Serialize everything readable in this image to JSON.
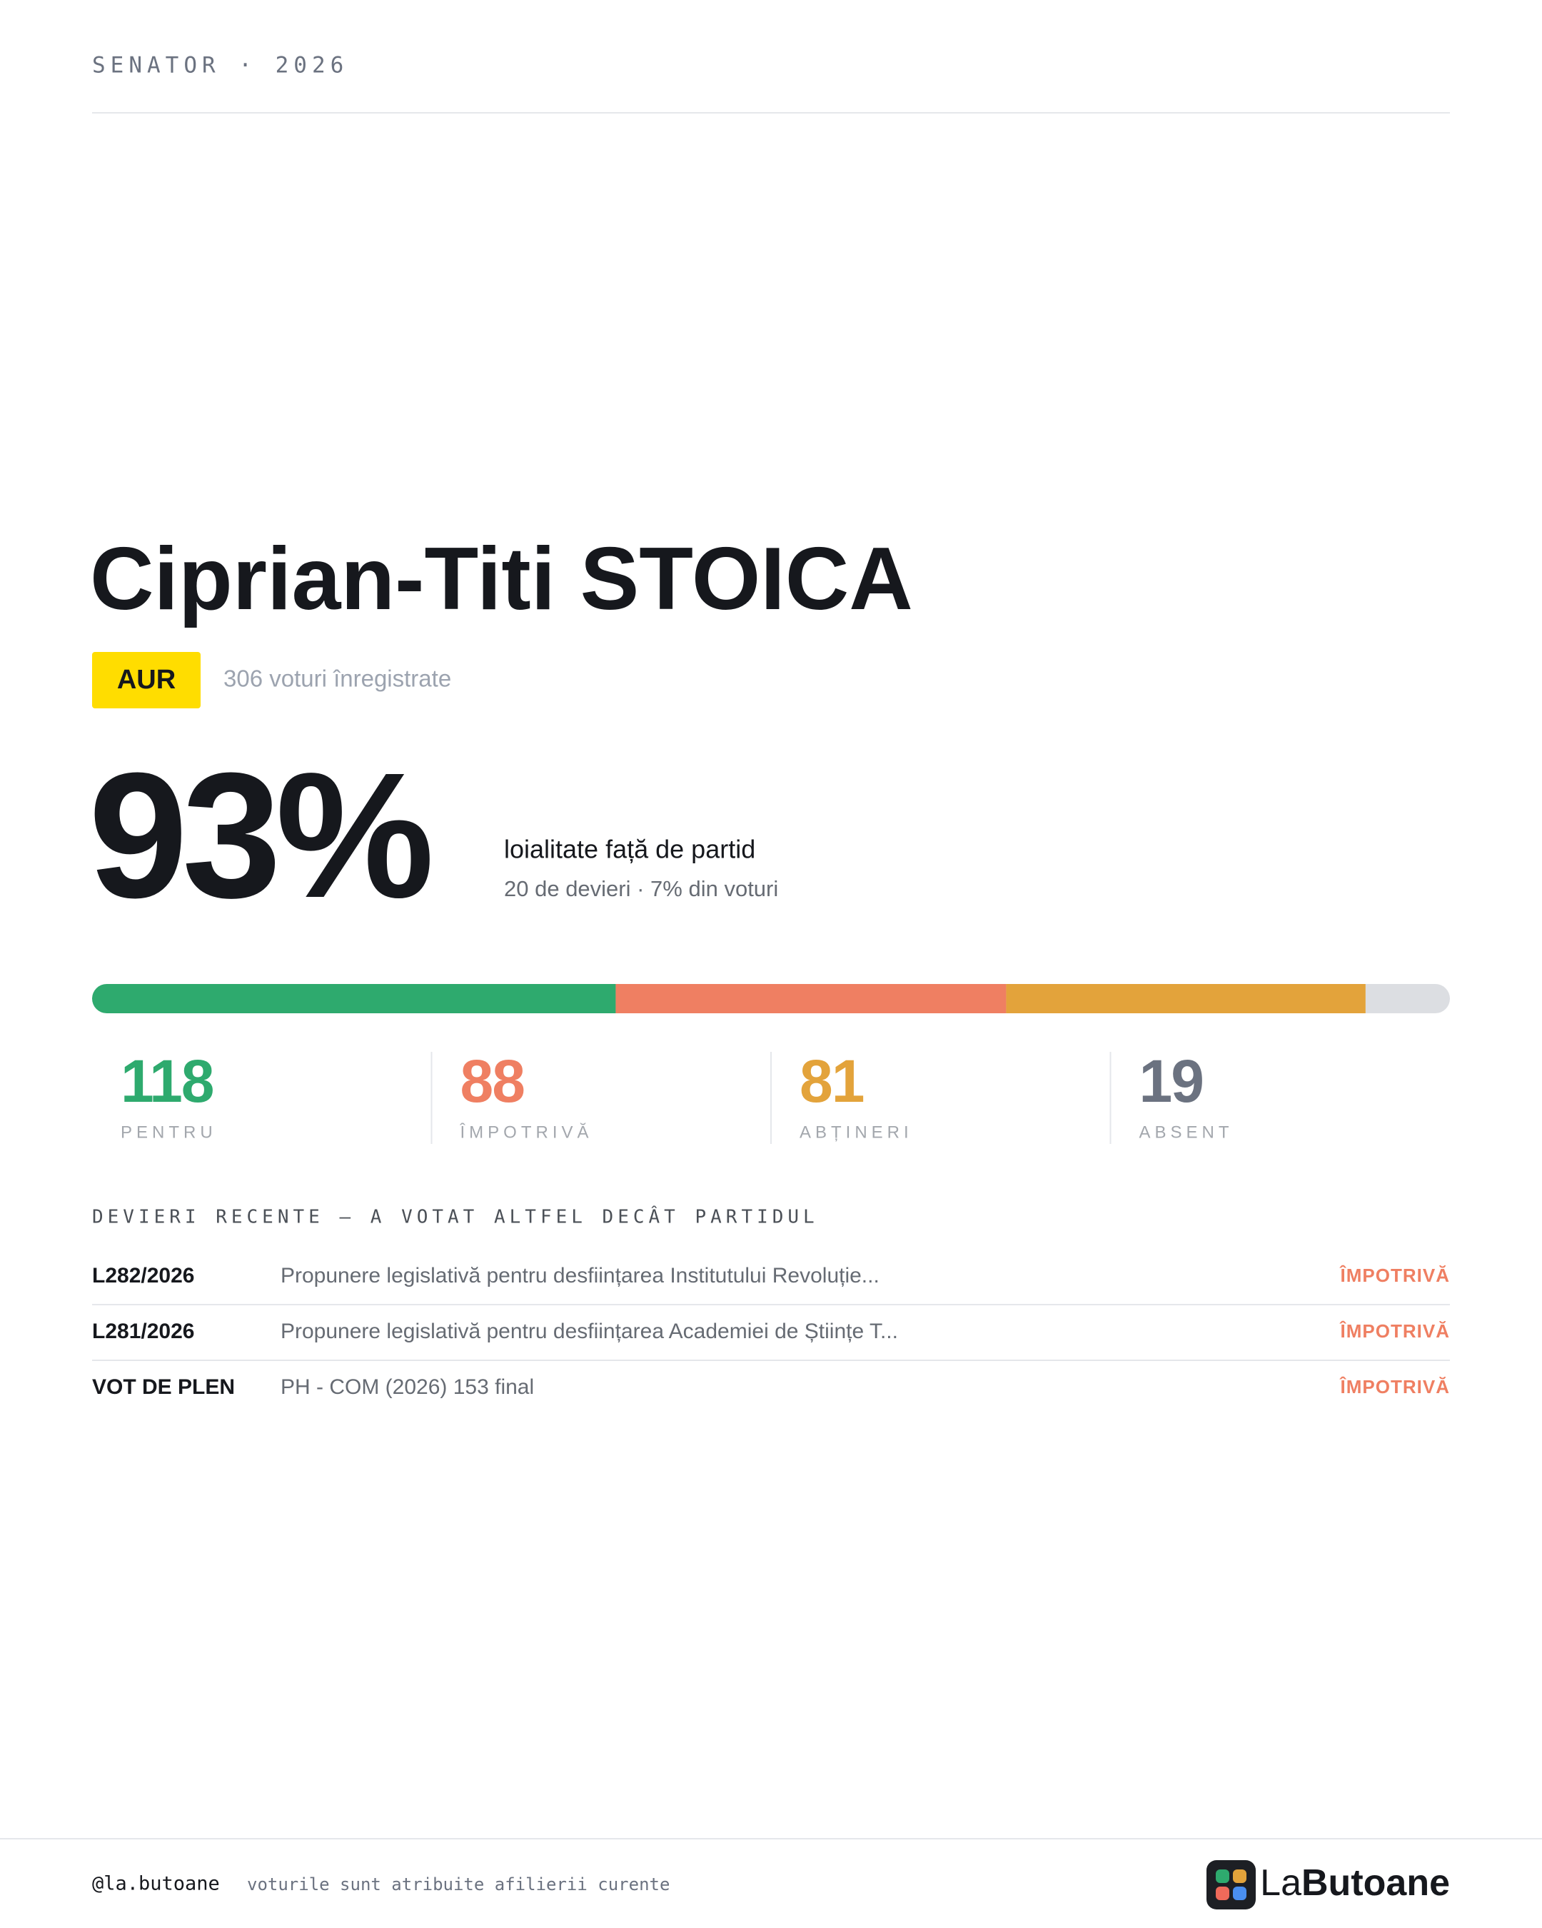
{
  "header": {
    "kicker": "SENATOR · 2026"
  },
  "profile": {
    "name": "Ciprian-Titi STOICA",
    "party": "AUR",
    "votes_recorded": "306 voturi înregistrate"
  },
  "loyalty": {
    "value": "93%",
    "label": "loialitate față de partid",
    "detail": "20 de devieri · 7% din voturi"
  },
  "stats": [
    {
      "value": 118,
      "label": "PENTRU",
      "color": "#2eaa6e"
    },
    {
      "value": 88,
      "label": "ÎMPOTRIVĂ",
      "color": "#ef7f62"
    },
    {
      "value": 81,
      "label": "ABȚINERI",
      "color": "#e3a33b"
    },
    {
      "value": 19,
      "label": "ABSENT",
      "color": "#6b7280",
      "bar_color": "#dcdee2"
    }
  ],
  "deviations": {
    "title": "DEVIERI RECENTE — A VOTAT ALTFEL DECÂT PARTIDUL",
    "rows": [
      {
        "id": "L282/2026",
        "title": "Propunere legislativă pentru desființarea Institutului Revoluție...",
        "vote": "ÎMPOTRIVĂ"
      },
      {
        "id": "L281/2026",
        "title": "Propunere legislativă pentru desființarea Academiei de Științe T...",
        "vote": "ÎMPOTRIVĂ"
      },
      {
        "id": "VOT DE PLEN",
        "title": "PH - COM (2026) 153 final",
        "vote": "ÎMPOTRIVĂ"
      }
    ]
  },
  "footer": {
    "handle": "@la.butoane",
    "note": "voturile sunt atribuite afilierii curente",
    "brand_prefix": "La",
    "brand_name": "Butoane"
  }
}
